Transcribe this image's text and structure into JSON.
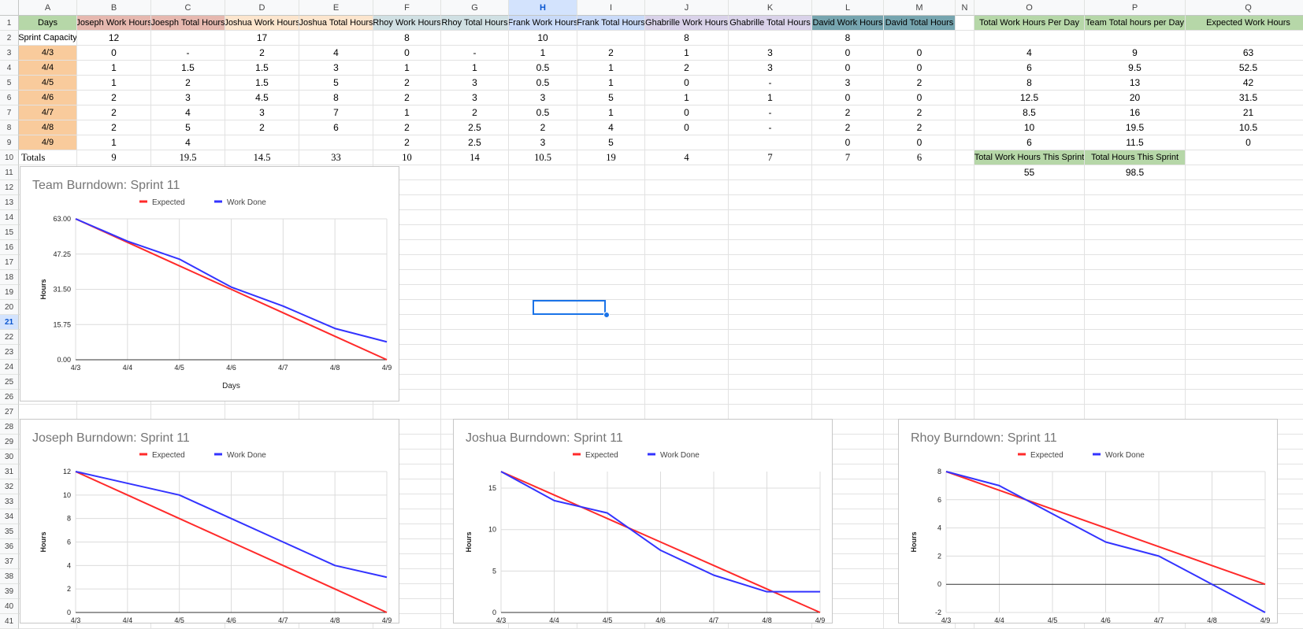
{
  "columns": [
    "A",
    "B",
    "C",
    "D",
    "E",
    "F",
    "G",
    "H",
    "I",
    "J",
    "K",
    "L",
    "M",
    "N",
    "O",
    "P",
    "Q"
  ],
  "selected_cell": "H21",
  "headers": {
    "A": "Days",
    "B": "Joseph Work Hours",
    "C": "Joesph Total Hours",
    "D": "Joshua Work Hours",
    "E": "Joshua Total Hours",
    "F": "Rhoy Work Hours",
    "G": "Rhoy Total Hours",
    "H": "Frank Work Hours",
    "I": "Frank Total Hours",
    "J": "Ghabrille Work Hours",
    "K": "Ghabrille Total Hours",
    "L": "David Work Hours",
    "M": "David Total Hours",
    "O": "Total Work Hours Per Day",
    "P": "Team Total hours per Day",
    "Q": "Expected Work Hours"
  },
  "header_colors": {
    "A": "#b6d7a8",
    "B": "#e6b8af",
    "C": "#e6b8af",
    "D": "#fce5cd",
    "E": "#fce5cd",
    "F": "#d0e0e3",
    "G": "#d0e0e3",
    "H": "#c9daf8",
    "I": "#c9daf8",
    "J": "#d9d2e9",
    "K": "#d9d2e9",
    "L": "#76a5af",
    "M": "#76a5af",
    "O": "#b6d7a8",
    "P": "#b6d7a8",
    "Q": "#b6d7a8"
  },
  "day_cell_color": "#f9cb9c",
  "capacity": {
    "label": "Sprint Capacity",
    "B": "12",
    "D": "17",
    "F": "8",
    "H": "10",
    "J": "8",
    "L": "8"
  },
  "rows": [
    {
      "A": "4/3",
      "B": "0",
      "C": "-",
      "D": "2",
      "E": "4",
      "F": "0",
      "G": "-",
      "H": "1",
      "I": "2",
      "J": "1",
      "K": "3",
      "L": "0",
      "M": "0",
      "O": "4",
      "P": "9",
      "Q": "63"
    },
    {
      "A": "4/4",
      "B": "1",
      "C": "1.5",
      "D": "1.5",
      "E": "3",
      "F": "1",
      "G": "1",
      "H": "0.5",
      "I": "1",
      "J": "2",
      "K": "3",
      "L": "0",
      "M": "0",
      "O": "6",
      "P": "9.5",
      "Q": "52.5"
    },
    {
      "A": "4/5",
      "B": "1",
      "C": "2",
      "D": "1.5",
      "E": "5",
      "F": "2",
      "G": "3",
      "H": "0.5",
      "I": "1",
      "J": "0",
      "K": "-",
      "L": "3",
      "M": "2",
      "O": "8",
      "P": "13",
      "Q": "42"
    },
    {
      "A": "4/6",
      "B": "2",
      "C": "3",
      "D": "4.5",
      "E": "8",
      "F": "2",
      "G": "3",
      "H": "3",
      "I": "5",
      "J": "1",
      "K": "1",
      "L": "0",
      "M": "0",
      "O": "12.5",
      "P": "20",
      "Q": "31.5"
    },
    {
      "A": "4/7",
      "B": "2",
      "C": "4",
      "D": "3",
      "E": "7",
      "F": "1",
      "G": "2",
      "H": "0.5",
      "I": "1",
      "J": "0",
      "K": "-",
      "L": "2",
      "M": "2",
      "O": "8.5",
      "P": "16",
      "Q": "21"
    },
    {
      "A": "4/8",
      "B": "2",
      "C": "5",
      "D": "2",
      "E": "6",
      "F": "2",
      "G": "2.5",
      "H": "2",
      "I": "4",
      "J": "0",
      "K": "-",
      "L": "2",
      "M": "2",
      "O": "10",
      "P": "19.5",
      "Q": "10.5"
    },
    {
      "A": "4/9",
      "B": "1",
      "C": "4",
      "D": "",
      "E": "",
      "F": "2",
      "G": "2.5",
      "H": "3",
      "I": "5",
      "J": "",
      "K": "",
      "L": "0",
      "M": "0",
      "O": "6",
      "P": "11.5",
      "Q": "0"
    }
  ],
  "totals": {
    "A": "Totals",
    "B": "9",
    "C": "19.5",
    "D": "14.5",
    "E": "33",
    "F": "10",
    "G": "14",
    "H": "10.5",
    "I": "19",
    "J": "4",
    "K": "7",
    "L": "7",
    "M": "6"
  },
  "sprint_totals": {
    "O_label": "Total Work Hours This Sprint",
    "P_label": "Total Hours This Sprint",
    "O_value": "55",
    "P_value": "98.5"
  },
  "colors": {
    "expected": "#ff2a2a",
    "work_done": "#3333ff",
    "selection": "#1a73e8"
  },
  "chart_data": [
    {
      "type": "line",
      "title": "Team Burndown: Sprint 11",
      "xlabel": "Days",
      "ylabel": "Hours",
      "categories": [
        "4/3",
        "4/4",
        "4/5",
        "4/6",
        "4/7",
        "4/8",
        "4/9"
      ],
      "yticks": [
        "0.00",
        "15.75",
        "31.50",
        "47.25",
        "63.00"
      ],
      "ylim": [
        0,
        63
      ],
      "legend": "top",
      "series": [
        {
          "name": "Expected",
          "values": [
            63,
            52.5,
            42,
            31.5,
            21,
            10.5,
            0
          ]
        },
        {
          "name": "Work Done",
          "values": [
            63,
            53,
            45,
            32.5,
            24,
            14,
            8
          ]
        }
      ]
    },
    {
      "type": "line",
      "title": "Joseph Burndown: Sprint 11",
      "xlabel": "",
      "ylabel": "Hours",
      "categories": [
        "4/3",
        "4/4",
        "4/5",
        "4/6",
        "4/7",
        "4/8",
        "4/9"
      ],
      "yticks": [
        "0",
        "2",
        "4",
        "6",
        "8",
        "10",
        "12"
      ],
      "ylim": [
        0,
        12
      ],
      "legend": "top",
      "series": [
        {
          "name": "Expected",
          "values": [
            12,
            10,
            8,
            6,
            4,
            2,
            0
          ]
        },
        {
          "name": "Work Done",
          "values": [
            12,
            11,
            10,
            8,
            6,
            4,
            3
          ]
        }
      ]
    },
    {
      "type": "line",
      "title": "Joshua Burndown: Sprint 11",
      "xlabel": "",
      "ylabel": "Hours",
      "categories": [
        "4/3",
        "4/4",
        "4/5",
        "4/6",
        "4/7",
        "4/8",
        "4/9"
      ],
      "yticks": [
        "0",
        "5",
        "10",
        "15"
      ],
      "ylim": [
        0,
        17
      ],
      "legend": "top",
      "series": [
        {
          "name": "Expected",
          "values": [
            17,
            14.17,
            11.33,
            8.5,
            5.67,
            2.83,
            0
          ]
        },
        {
          "name": "Work Done",
          "values": [
            17,
            13.5,
            12,
            7.5,
            4.5,
            2.5,
            2.5
          ]
        }
      ]
    },
    {
      "type": "line",
      "title": "Rhoy Burndown: Sprint 11",
      "xlabel": "",
      "ylabel": "Hours",
      "categories": [
        "4/3",
        "4/4",
        "4/5",
        "4/6",
        "4/7",
        "4/8",
        "4/9"
      ],
      "yticks": [
        "-2",
        "0",
        "2",
        "4",
        "6",
        "8"
      ],
      "ylim": [
        -2,
        8
      ],
      "legend": "top",
      "series": [
        {
          "name": "Expected",
          "values": [
            8,
            6.67,
            5.33,
            4,
            2.67,
            1.33,
            0
          ]
        },
        {
          "name": "Work Done",
          "values": [
            8,
            7,
            5,
            3,
            2,
            0,
            -2
          ]
        }
      ]
    }
  ]
}
